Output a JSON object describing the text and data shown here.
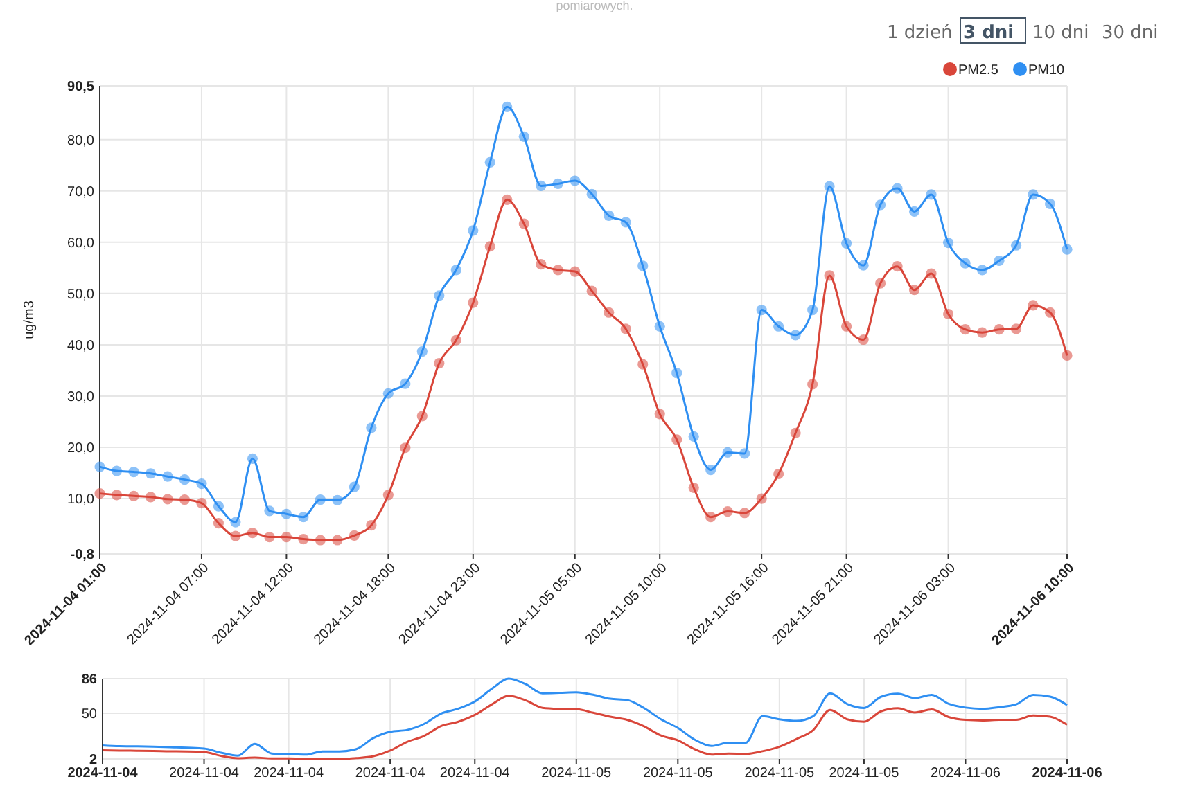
{
  "chart_data": [
    {
      "type": "line",
      "title": "pomiarowych.",
      "ylabel": "ug/m3",
      "annotations": [
        "1 dzień",
        "3 dni",
        "10 dni",
        "30 dni"
      ],
      "categories": [
        "2024-11-04 01:00",
        null,
        null,
        null,
        null,
        null,
        "2024-11-04 07:00",
        null,
        null,
        null,
        null,
        "2024-11-04 12:00",
        null,
        null,
        null,
        null,
        null,
        "2024-11-04 18:00",
        null,
        null,
        null,
        null,
        "2024-11-04 23:00",
        null,
        null,
        null,
        null,
        null,
        "2024-11-05 05:00",
        null,
        null,
        null,
        null,
        "2024-11-05 10:00",
        null,
        null,
        null,
        null,
        null,
        "2024-11-05 16:00",
        null,
        null,
        null,
        null,
        "2024-11-05 21:00",
        null,
        null,
        null,
        null,
        null,
        "2024-11-06 03:00",
        null,
        null,
        null,
        null,
        null,
        null,
        "2024-11-06 10:00"
      ],
      "series": [
        {
          "name": "PM2.5",
          "color": "#d9463a",
          "values": [
            11.0,
            10.7,
            10.5,
            10.3,
            9.9,
            9.8,
            9.1,
            5.2,
            2.7,
            3.3,
            2.5,
            2.5,
            2.1,
            1.9,
            1.9,
            2.8,
            4.8,
            10.7,
            19.9,
            26.1,
            36.4,
            40.9,
            48.2,
            59.2,
            68.3,
            63.6,
            55.7,
            54.6,
            54.3,
            50.5,
            46.3,
            43.1,
            36.2,
            26.5,
            21.5,
            12.1,
            6.4,
            7.5,
            7.2,
            10.0,
            14.8,
            22.8,
            32.3,
            53.5,
            43.6,
            41.0,
            52.0,
            55.3,
            50.7,
            53.9,
            46.0,
            43.0,
            42.4,
            43.0,
            43.1,
            47.7,
            46.3,
            37.9
          ]
        },
        {
          "name": "PM10",
          "color": "#2f8ff2",
          "values": [
            16.2,
            15.4,
            15.2,
            14.9,
            14.3,
            13.7,
            12.9,
            8.5,
            5.4,
            17.8,
            7.6,
            7.0,
            6.4,
            9.8,
            9.7,
            12.3,
            23.8,
            30.5,
            32.4,
            38.7,
            49.6,
            54.6,
            62.3,
            75.6,
            86.4,
            80.6,
            71.0,
            71.4,
            72.0,
            69.4,
            65.2,
            63.9,
            55.4,
            43.6,
            34.5,
            22.1,
            15.6,
            19.0,
            18.8,
            46.8,
            43.6,
            41.9,
            46.8,
            70.9,
            59.8,
            55.5,
            67.3,
            70.5,
            66.0,
            69.3,
            59.9,
            55.9,
            54.6,
            56.4,
            59.4,
            69.3,
            67.5,
            58.6
          ]
        }
      ],
      "ylim": [
        -0.8,
        90.5
      ],
      "yticks": [
        {
          "value": -0.8,
          "label": "-0,8"
        },
        {
          "value": 10,
          "label": "10,0"
        },
        {
          "value": 20,
          "label": "20,0"
        },
        {
          "value": 30,
          "label": "30,0"
        },
        {
          "value": 40,
          "label": "40,0"
        },
        {
          "value": 50,
          "label": "50,0"
        },
        {
          "value": 60,
          "label": "60,0"
        },
        {
          "value": 70,
          "label": "70,0"
        },
        {
          "value": 80,
          "label": "80,0"
        },
        {
          "value": 90.5,
          "label": "90,5"
        }
      ],
      "grid": true,
      "legend": "top right",
      "marker": "circle",
      "line_style": "solid"
    },
    {
      "type": "line",
      "categories": [
        "2024-11-04",
        null,
        null,
        null,
        null,
        null,
        "2024-11-04",
        null,
        null,
        null,
        null,
        "2024-11-04",
        null,
        null,
        null,
        null,
        null,
        "2024-11-04",
        null,
        null,
        null,
        null,
        "2024-11-04",
        null,
        null,
        null,
        null,
        null,
        "2024-11-05",
        null,
        null,
        null,
        null,
        null,
        "2024-11-05",
        null,
        null,
        null,
        null,
        null,
        "2024-11-05",
        null,
        null,
        null,
        null,
        "2024-11-05",
        null,
        null,
        null,
        null,
        null,
        "2024-11-06",
        null,
        null,
        null,
        null,
        null,
        "2024-11-06"
      ],
      "series": [
        {
          "color": "#d9463a",
          "values": [
            11.0,
            10.7,
            10.5,
            10.3,
            9.9,
            9.8,
            9.1,
            5.2,
            2.7,
            3.3,
            2.5,
            2.5,
            2.1,
            1.9,
            1.9,
            2.8,
            4.8,
            10.7,
            19.9,
            26.1,
            36.4,
            40.9,
            48.2,
            59.2,
            68.3,
            63.6,
            55.7,
            54.6,
            54.3,
            50.5,
            46.3,
            43.1,
            36.2,
            26.5,
            21.5,
            12.1,
            6.4,
            7.5,
            7.2,
            10.0,
            14.8,
            22.8,
            32.3,
            53.5,
            43.6,
            41.0,
            52.0,
            55.3,
            50.7,
            53.9,
            46.0,
            43.0,
            42.4,
            43.0,
            43.1,
            47.7,
            46.3,
            37.9
          ]
        },
        {
          "color": "#2f8ff2",
          "values": [
            16.2,
            15.4,
            15.2,
            14.9,
            14.3,
            13.7,
            12.9,
            8.5,
            5.4,
            17.8,
            7.6,
            7.0,
            6.4,
            9.8,
            9.7,
            12.3,
            23.8,
            30.5,
            32.4,
            38.7,
            49.6,
            54.6,
            62.3,
            75.6,
            86.4,
            80.6,
            71.0,
            71.4,
            72.0,
            69.4,
            65.2,
            63.9,
            55.4,
            43.6,
            34.5,
            22.1,
            15.6,
            19.0,
            18.8,
            46.8,
            43.6,
            41.9,
            46.8,
            70.9,
            59.8,
            55.5,
            67.3,
            70.5,
            66.0,
            69.3,
            59.9,
            55.9,
            54.6,
            56.4,
            59.4,
            69.3,
            67.5,
            58.6
          ]
        }
      ],
      "ylim": [
        1.9,
        86.4
      ],
      "yticks": [
        {
          "value": 1.9,
          "label": "2"
        },
        50,
        {
          "value": 86.4,
          "label": "86"
        }
      ],
      "grid": true,
      "marker": "none",
      "line_style": "solid"
    }
  ]
}
